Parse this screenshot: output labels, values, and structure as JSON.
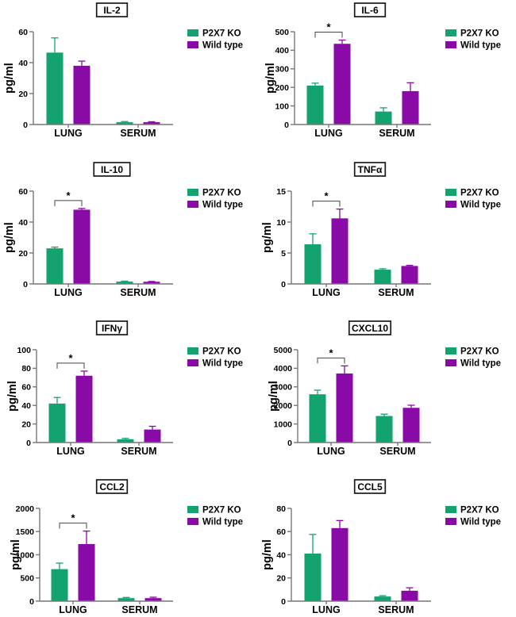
{
  "figure": {
    "description": "Cytokine and chemokine levels (pg/ml) in LUNG and SERUM of P2X7 KO vs Wild type",
    "ylabel": "pg/ml",
    "legend": {
      "entries": [
        {
          "key": "ko",
          "label": "P2X7 KO"
        },
        {
          "key": "wt",
          "label": "Wild type"
        }
      ]
    },
    "colors": {
      "ko": "#12a36e",
      "wt": "#8a0aa8",
      "axis": "#777777",
      "bracket": "#444444",
      "text": "#000000",
      "title_border": "#1a1a1a",
      "background": "#ffffff"
    },
    "significance_symbol": "*"
  },
  "chart_data": [
    {
      "type": "bar",
      "title": "IL-2",
      "ylabel": "pg/ml",
      "categories": [
        "LUNG",
        "SERUM"
      ],
      "series": [
        {
          "name": "P2X7 KO",
          "color_key": "ko",
          "values": [
            46.5,
            1.5
          ],
          "errors_upper": [
            9.5,
            0.4
          ]
        },
        {
          "name": "Wild type",
          "color_key": "wt",
          "values": [
            38,
            1.5
          ],
          "errors_upper": [
            3,
            0.3
          ]
        }
      ],
      "ylim": [
        0,
        60
      ],
      "yticks": [
        0,
        20,
        40,
        60
      ],
      "significant_categories": []
    },
    {
      "type": "bar",
      "title": "IL-6",
      "ylabel": "pg/ml",
      "categories": [
        "LUNG",
        "SERUM"
      ],
      "series": [
        {
          "name": "P2X7 KO",
          "color_key": "ko",
          "values": [
            210,
            70
          ],
          "errors_upper": [
            13,
            20
          ]
        },
        {
          "name": "Wild type",
          "color_key": "wt",
          "values": [
            435,
            180
          ],
          "errors_upper": [
            20,
            45
          ]
        }
      ],
      "ylim": [
        0,
        500
      ],
      "yticks": [
        0,
        100,
        200,
        300,
        400,
        500
      ],
      "significant_categories": [
        "LUNG"
      ]
    },
    {
      "type": "bar",
      "title": "IL-10",
      "ylabel": "pg/ml",
      "categories": [
        "LUNG",
        "SERUM"
      ],
      "series": [
        {
          "name": "P2X7 KO",
          "color_key": "ko",
          "values": [
            23,
            1.5
          ],
          "errors_upper": [
            0.8,
            0.3
          ]
        },
        {
          "name": "Wild type",
          "color_key": "wt",
          "values": [
            48,
            1.4
          ],
          "errors_upper": [
            0.8,
            0.2
          ]
        }
      ],
      "ylim": [
        0,
        60
      ],
      "yticks": [
        0,
        20,
        40,
        60
      ],
      "significant_categories": [
        "LUNG"
      ]
    },
    {
      "type": "bar",
      "title": "TNFα",
      "ylabel": "pg/ml",
      "categories": [
        "LUNG",
        "SERUM"
      ],
      "series": [
        {
          "name": "P2X7 KO",
          "color_key": "ko",
          "values": [
            6.4,
            2.3
          ],
          "errors_upper": [
            1.7,
            0.15
          ]
        },
        {
          "name": "Wild type",
          "color_key": "wt",
          "values": [
            10.6,
            2.9
          ],
          "errors_upper": [
            1.5,
            0.1
          ]
        }
      ],
      "ylim": [
        0,
        15
      ],
      "yticks": [
        0,
        5,
        10,
        15
      ],
      "significant_categories": [
        "LUNG"
      ]
    },
    {
      "type": "bar",
      "title": "IFNγ",
      "ylabel": "pg/ml",
      "categories": [
        "LUNG",
        "SERUM"
      ],
      "series": [
        {
          "name": "P2X7 KO",
          "color_key": "ko",
          "values": [
            42,
            3.5
          ],
          "errors_upper": [
            6.5,
            1.0
          ]
        },
        {
          "name": "Wild type",
          "color_key": "wt",
          "values": [
            72,
            14
          ],
          "errors_upper": [
            5,
            3.5
          ]
        }
      ],
      "ylim": [
        0,
        100
      ],
      "yticks": [
        0,
        20,
        40,
        60,
        80,
        100
      ],
      "significant_categories": [
        "LUNG"
      ]
    },
    {
      "type": "bar",
      "title": "CXCL10",
      "ylabel": "pg/ml",
      "categories": [
        "LUNG",
        "SERUM"
      ],
      "series": [
        {
          "name": "P2X7 KO",
          "color_key": "ko",
          "values": [
            2600,
            1430
          ],
          "errors_upper": [
            220,
            100
          ]
        },
        {
          "name": "Wild type",
          "color_key": "wt",
          "values": [
            3720,
            1870
          ],
          "errors_upper": [
            410,
            140
          ]
        }
      ],
      "ylim": [
        0,
        5000
      ],
      "yticks": [
        0,
        1000,
        2000,
        3000,
        4000,
        5000
      ],
      "significant_categories": [
        "LUNG"
      ]
    },
    {
      "type": "bar",
      "title": "CCL2",
      "ylabel": "pg/ml",
      "categories": [
        "LUNG",
        "SERUM"
      ],
      "series": [
        {
          "name": "P2X7 KO",
          "color_key": "ko",
          "values": [
            690,
            65
          ],
          "errors_upper": [
            130,
            15
          ]
        },
        {
          "name": "Wild type",
          "color_key": "wt",
          "values": [
            1230,
            65
          ],
          "errors_upper": [
            280,
            20
          ]
        }
      ],
      "ylim": [
        0,
        2000
      ],
      "yticks": [
        0,
        500,
        1000,
        1500,
        2000
      ],
      "significant_categories": [
        "LUNG"
      ]
    },
    {
      "type": "bar",
      "title": "CCL5",
      "ylabel": "pg/ml",
      "categories": [
        "LUNG",
        "SERUM"
      ],
      "series": [
        {
          "name": "P2X7 KO",
          "color_key": "ko",
          "values": [
            41,
            4
          ],
          "errors_upper": [
            16.5,
            0.7
          ]
        },
        {
          "name": "Wild type",
          "color_key": "wt",
          "values": [
            63,
            9
          ],
          "errors_upper": [
            6.5,
            2.5
          ]
        }
      ],
      "ylim": [
        0,
        80
      ],
      "yticks": [
        0,
        20,
        40,
        60,
        80
      ],
      "significant_categories": []
    }
  ]
}
